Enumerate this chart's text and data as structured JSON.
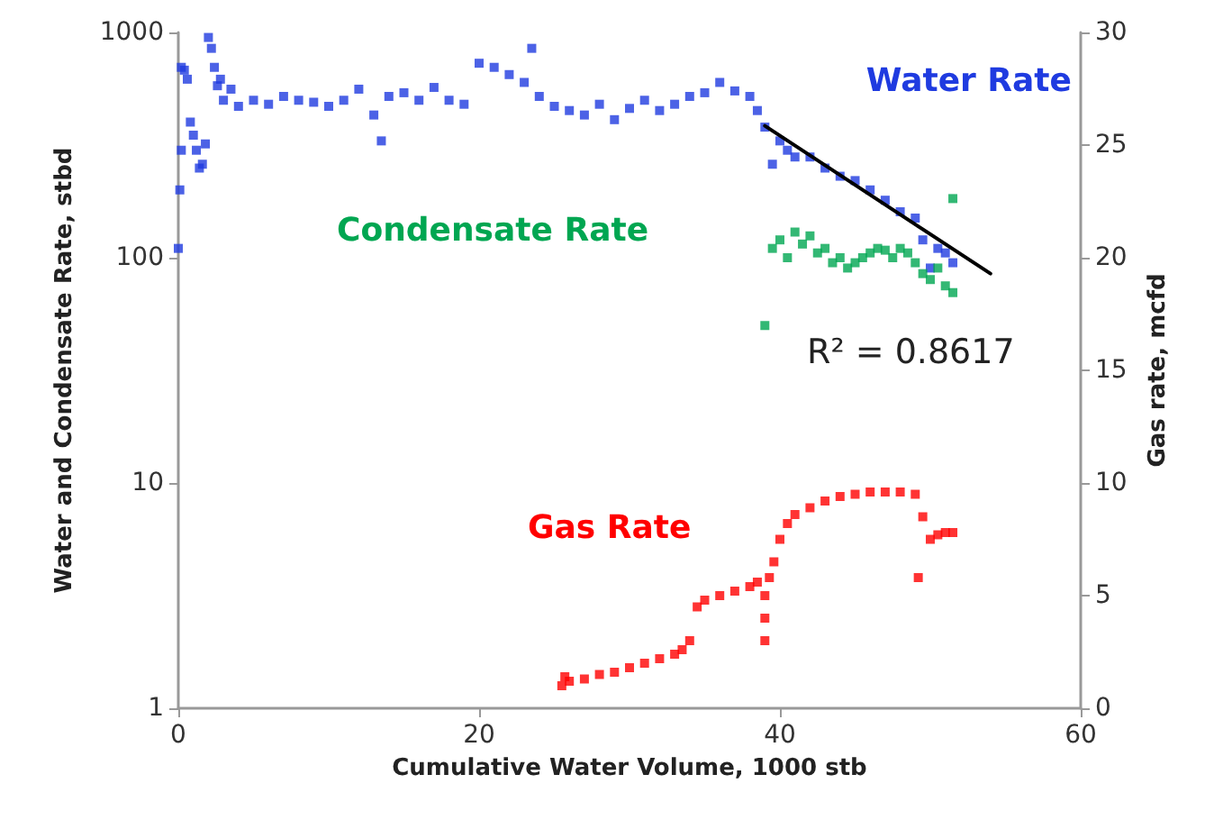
{
  "chart_data": {
    "type": "scatter",
    "xlabel": "Cumulative Water Volume, 1000 stb",
    "ylabel": "Water and Condensate Rate, stbd",
    "y2label": "Gas rate, mcfd",
    "xlim": [
      0,
      60
    ],
    "xticks": [
      0,
      20,
      40,
      60
    ],
    "ylim": [
      1,
      1000
    ],
    "yticks": [
      1,
      10,
      100,
      1000
    ],
    "y2lim": [
      0,
      30
    ],
    "y2ticks": [
      0,
      5,
      10,
      15,
      20,
      25,
      30
    ],
    "log": "y",
    "grid": false,
    "legend": false,
    "marker": "square",
    "annotations": [
      "R² = 0.8617"
    ],
    "series": [
      {
        "name": "Water Rate",
        "color": "#1f3be0",
        "x": [
          0,
          0.1,
          0.2,
          0.2,
          0.4,
          0.6,
          0.8,
          1,
          1.2,
          1.4,
          1.6,
          1.8,
          2,
          2.2,
          2.4,
          2.6,
          2.8,
          3,
          3.5,
          4,
          5,
          6,
          7,
          8,
          9,
          10,
          11,
          12,
          13,
          13.5,
          14,
          15,
          16,
          17,
          18,
          19,
          20,
          21,
          22,
          23,
          23.5,
          24,
          25,
          26,
          27,
          28,
          29,
          30,
          31,
          32,
          33,
          34,
          35,
          36,
          37,
          38,
          38.5,
          39,
          39.5,
          40,
          40.5,
          41,
          42,
          43,
          44,
          45,
          46,
          47,
          48,
          49,
          49.5,
          50,
          50.5,
          51,
          51.5
        ],
        "values": [
          110,
          200,
          300,
          700,
          680,
          620,
          400,
          350,
          300,
          250,
          260,
          320,
          950,
          850,
          700,
          580,
          620,
          500,
          560,
          470,
          500,
          480,
          520,
          500,
          490,
          470,
          500,
          560,
          430,
          330,
          520,
          540,
          500,
          570,
          500,
          480,
          730,
          700,
          650,
          600,
          850,
          520,
          470,
          450,
          430,
          480,
          410,
          460,
          500,
          450,
          480,
          520,
          540,
          600,
          550,
          520,
          450,
          380,
          260,
          330,
          300,
          280,
          280,
          250,
          230,
          220,
          200,
          180,
          160,
          150,
          120,
          90,
          110,
          105,
          95
        ]
      },
      {
        "name": "Condensate Rate",
        "color": "#00a651",
        "x": [
          39,
          39.5,
          40,
          40.5,
          41,
          41.5,
          42,
          42.5,
          43,
          43.5,
          44,
          44.5,
          45,
          45.5,
          46,
          46.5,
          47,
          47.5,
          48,
          48.5,
          49,
          49.5,
          50,
          50.5,
          51,
          51.5,
          51.5
        ],
        "values": [
          50,
          110,
          120,
          100,
          130,
          115,
          125,
          105,
          110,
          95,
          100,
          90,
          95,
          100,
          105,
          110,
          108,
          100,
          110,
          105,
          95,
          85,
          80,
          90,
          75,
          70,
          183
        ]
      },
      {
        "name": "Gas Rate",
        "color": "#ff0000",
        "axis": "y2",
        "x": [
          25.5,
          25.7,
          26,
          27,
          28,
          29,
          30,
          31,
          32,
          33,
          33.5,
          34,
          34.5,
          35,
          36,
          37,
          38,
          38.5,
          39,
          39,
          39,
          39.3,
          39.6,
          40,
          40.5,
          41,
          42,
          43,
          44,
          45,
          46,
          47,
          48,
          49,
          49.2,
          49.5,
          50,
          50.5,
          51,
          51.5
        ],
        "values": [
          1.0,
          1.4,
          1.2,
          1.3,
          1.5,
          1.6,
          1.8,
          2.0,
          2.2,
          2.4,
          2.6,
          3.0,
          4.5,
          4.8,
          5.0,
          5.2,
          5.4,
          5.6,
          5.0,
          4.0,
          3.0,
          5.8,
          6.5,
          7.5,
          8.2,
          8.6,
          8.9,
          9.2,
          9.4,
          9.5,
          9.6,
          9.6,
          9.6,
          9.5,
          5.8,
          8.5,
          7.5,
          7.7,
          7.8,
          7.8
        ]
      },
      {
        "type": "line",
        "color": "#000000",
        "marker": "none",
        "line_style": "solid",
        "x": [
          39,
          54
        ],
        "values": [
          385,
          85
        ]
      }
    ]
  }
}
